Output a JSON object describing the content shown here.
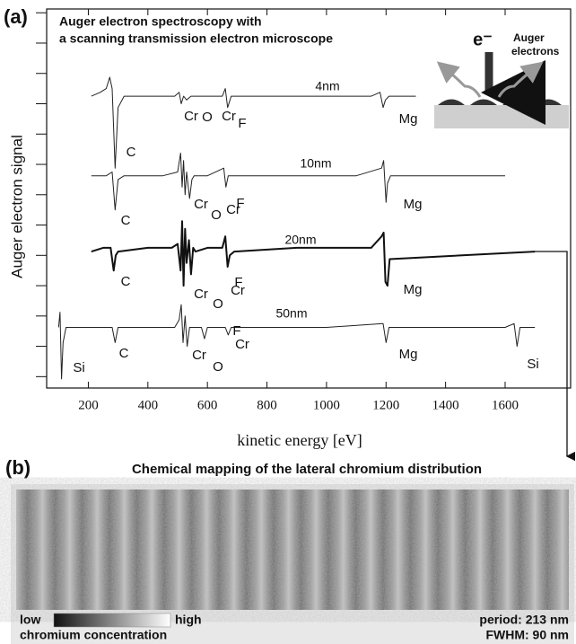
{
  "chart_data": {
    "type": "line",
    "panel_label": "(a)",
    "title": [
      "Auger electron  spectroscopy with",
      "a scanning transmission electron microscope"
    ],
    "xlabel": "kinetic energy [eV]",
    "ylabel": "Auger electron signal",
    "xlim": [
      60,
      1820
    ],
    "ylim": [
      0,
      100
    ],
    "xticks": [
      200,
      400,
      600,
      800,
      1000,
      1200,
      1400,
      1600
    ],
    "yticks": [
      3,
      11,
      19,
      27,
      35,
      43,
      51,
      59,
      67,
      75,
      83,
      91,
      99
    ],
    "series": [
      {
        "name": "4nm",
        "color": "#222222",
        "width": 1,
        "x": [
          210,
          240,
          260,
          272,
          280,
          290,
          300,
          320,
          400,
          490,
          505,
          512,
          520,
          530,
          545,
          600,
          650,
          660,
          668,
          680,
          800,
          1000,
          1150,
          1180,
          1190,
          1198,
          1210,
          1300
        ],
        "values": [
          77,
          78,
          79,
          82,
          79,
          58,
          74,
          77,
          77,
          77,
          78,
          75,
          77,
          76,
          77,
          77,
          77,
          79,
          74,
          77,
          77,
          77,
          77,
          78,
          74,
          76,
          77,
          77
        ],
        "peak_labels": [
          "C",
          "Cr",
          "O",
          "Cr",
          "F",
          "Mg"
        ]
      },
      {
        "name": "10nm",
        "color": "#222222",
        "width": 1,
        "x": [
          210,
          260,
          280,
          290,
          300,
          320,
          450,
          500,
          510,
          515,
          520,
          525,
          530,
          540,
          548,
          555,
          600,
          655,
          662,
          670,
          680,
          800,
          1100,
          1185,
          1192,
          1200,
          1205,
          1215,
          1600
        ],
        "values": [
          56,
          56,
          57,
          47,
          55,
          56,
          56,
          57,
          62,
          53,
          60,
          51,
          57,
          50,
          55,
          56,
          56,
          58,
          53,
          56,
          56,
          56,
          56,
          58,
          60,
          49,
          54,
          56,
          56
        ],
        "peak_labels": [
          "C",
          "Cr",
          "O",
          "Cr",
          "F",
          "Mg"
        ]
      },
      {
        "name": "20nm",
        "color": "#111111",
        "width": 2,
        "x": [
          210,
          250,
          275,
          285,
          292,
          300,
          400,
          480,
          500,
          510,
          515,
          520,
          525,
          530,
          538,
          545,
          552,
          560,
          600,
          650,
          660,
          668,
          675,
          690,
          900,
          1150,
          1185,
          1192,
          1198,
          1205,
          1212,
          1700
        ],
        "values": [
          36,
          37,
          37,
          31,
          35,
          36,
          37,
          37,
          38,
          31,
          44,
          27,
          42,
          33,
          39,
          30,
          37,
          36,
          37,
          37,
          40,
          32,
          35,
          36,
          37,
          37,
          40,
          41,
          28,
          27,
          34,
          36
        ],
        "peak_labels": [
          "C",
          "Cr",
          "O",
          "Cr",
          "F",
          "Mg"
        ]
      },
      {
        "name": "50nm",
        "color": "#222222",
        "width": 1,
        "x": [
          100,
          105,
          110,
          115,
          125,
          200,
          280,
          290,
          300,
          400,
          490,
          505,
          512,
          518,
          525,
          532,
          540,
          580,
          590,
          600,
          660,
          670,
          680,
          1000,
          1190,
          1200,
          1210,
          1600,
          1630,
          1640,
          1650,
          1700
        ],
        "values": [
          16,
          20,
          2.4,
          12,
          16,
          16,
          16,
          12,
          16,
          16,
          16,
          18,
          22,
          12,
          19,
          11,
          16,
          16,
          13,
          16,
          16,
          14,
          16,
          16,
          17,
          12,
          16,
          16,
          17,
          11,
          16,
          16
        ],
        "peak_labels": [
          "Si",
          "C",
          "Cr",
          "O",
          "Cr",
          "F",
          "Mg",
          "Si"
        ]
      }
    ],
    "inset": {
      "electron": "e⁻",
      "emitted": [
        "Auger",
        "electrons"
      ]
    }
  },
  "panel_b": {
    "panel_label": "(b)",
    "title": "Chemical  mapping of  the lateral chromium distribution",
    "colorbar": {
      "low": "low",
      "high": "high",
      "caption": "chromium concentration"
    },
    "period": "period: 213 nm",
    "fwhm": "FWHM: 90 nm"
  }
}
